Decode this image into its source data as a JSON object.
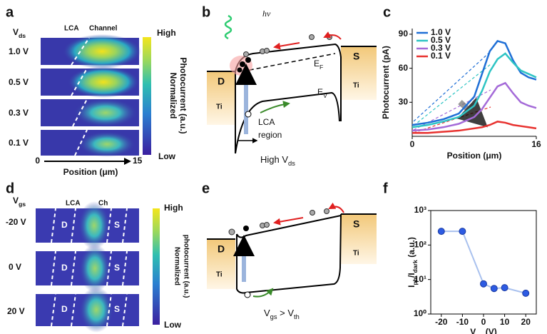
{
  "panel_labels": [
    "a",
    "b",
    "c",
    "d",
    "e",
    "f"
  ],
  "heatmap_a": {
    "param": [
      "V",
      "ds"
    ],
    "regions": [
      "LCA",
      "Channel"
    ],
    "rows": [
      "1.0 V",
      "0.5 V",
      "0.3 V",
      "0.1 V"
    ],
    "axis_start": "0",
    "axis_end": "15",
    "xlabel": "Position (μm)",
    "colorbar": {
      "high": "High",
      "label": [
        "Normalized",
        "Photocurrent (a.u.)"
      ],
      "low": "Low"
    }
  },
  "heatmap_d": {
    "param": [
      "V",
      "gs"
    ],
    "regions": [
      "LCA",
      "Ch"
    ],
    "rows": [
      "-20 V",
      "0 V",
      "20 V"
    ],
    "contacts": [
      "D",
      "S"
    ],
    "colorbar": {
      "high": "High",
      "label": [
        "Normalized",
        "photocurrent (a.u.)"
      ],
      "low": "Low"
    }
  },
  "band_b": {
    "photon": "hv",
    "drain": "D",
    "drain_metal": "Ti",
    "source": "S",
    "source_metal": "Ti",
    "fermi": [
      "E",
      "F"
    ],
    "valence": [
      "E",
      "V"
    ],
    "region": [
      "LCA",
      "region"
    ],
    "caption": [
      "High V",
      "ds"
    ]
  },
  "band_e": {
    "drain": "D",
    "drain_metal": "Ti",
    "source": "S",
    "source_metal": "Ti",
    "caption": [
      "V",
      "gs",
      " > V",
      "th"
    ]
  },
  "chart_data": [
    {
      "type": "line",
      "xlabel": "Position (μm)",
      "ylabel": "Photocurrent (pA)",
      "x": [
        0,
        2,
        4,
        6,
        8,
        9,
        10,
        11,
        12,
        13,
        14,
        15,
        16
      ],
      "xlim": [
        0,
        16
      ],
      "xticks": [
        0,
        16
      ],
      "ylim": [
        0,
        95
      ],
      "yticks": [
        30,
        60,
        90
      ],
      "grid": false,
      "legend": "upper left",
      "series": [
        {
          "name": "1.0 V",
          "color": "#1f6fd6",
          "values": [
            10,
            12,
            15,
            20,
            35,
            55,
            75,
            84,
            82,
            67,
            56,
            52,
            50
          ]
        },
        {
          "name": "0.5 V",
          "color": "#2ec4c4",
          "values": [
            8,
            10,
            13,
            17,
            27,
            40,
            57,
            68,
            73,
            65,
            58,
            55,
            52
          ]
        },
        {
          "name": "0.3 V",
          "color": "#a46ad8",
          "values": [
            5,
            6,
            8,
            11,
            17,
            24,
            34,
            44,
            47,
            38,
            30,
            27,
            25
          ]
        },
        {
          "name": "0.1 V",
          "color": "#e8322f",
          "values": [
            3,
            3,
            4,
            5,
            7,
            8,
            10,
            13,
            12,
            10,
            9,
            8,
            7
          ]
        }
      ]
    },
    {
      "type": "line",
      "markers": true,
      "log_y": true,
      "xlabel": [
        "V",
        "gs",
        " (V)"
      ],
      "ylabel": [
        "I",
        "ph",
        "/I",
        "dark",
        " (a.u.)"
      ],
      "x": [
        -20,
        -10,
        0,
        5,
        10,
        20
      ],
      "values": [
        250,
        250,
        7.5,
        5.5,
        5.8,
        4
      ],
      "color": "#2d5be3",
      "line_color": "#a9c1ee",
      "xlim": [
        -25,
        25
      ],
      "xticks": [
        -20,
        -10,
        0,
        10,
        20
      ],
      "ylim": [
        1,
        1000
      ],
      "yticks": [
        {
          "value": 1,
          "label": "10⁰"
        },
        {
          "value": 10,
          "label": "10¹"
        },
        {
          "value": 100,
          "label": "10²"
        },
        {
          "value": 1000,
          "label": "10³"
        }
      ]
    }
  ]
}
